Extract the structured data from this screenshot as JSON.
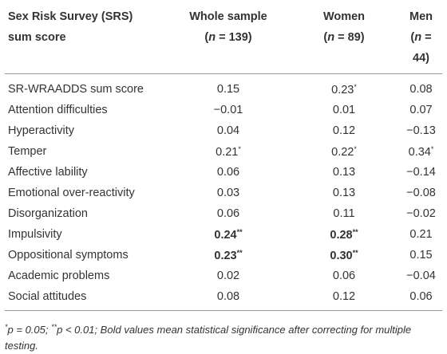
{
  "table": {
    "header": [
      [
        "Sex Risk Survey (SRS)",
        "sum score"
      ],
      [
        "Whole sample",
        "(n = 139)"
      ],
      [
        "Women",
        "(n = 89)"
      ],
      [
        "Men",
        "(n = 44)"
      ]
    ],
    "rows": [
      [
        {
          "text": "SR-WRAADDS sum score"
        },
        {
          "text": "0.15"
        },
        {
          "text": "0.23*"
        },
        {
          "text": "0.08"
        }
      ],
      [
        {
          "text": "Attention difficulties"
        },
        {
          "text": "−0.01"
        },
        {
          "text": "0.01"
        },
        {
          "text": "0.07"
        }
      ],
      [
        {
          "text": "Hyperactivity"
        },
        {
          "text": "0.04"
        },
        {
          "text": "0.12"
        },
        {
          "text": "−0.13"
        }
      ],
      [
        {
          "text": "Temper"
        },
        {
          "text": "0.21*"
        },
        {
          "text": "0.22*"
        },
        {
          "text": "0.34*"
        }
      ],
      [
        {
          "text": "Affective lability"
        },
        {
          "text": "0.06"
        },
        {
          "text": "0.13"
        },
        {
          "text": "−0.14"
        }
      ],
      [
        {
          "text": "Emotional over-reactivity"
        },
        {
          "text": "0.03"
        },
        {
          "text": "0.13"
        },
        {
          "text": "−0.08"
        }
      ],
      [
        {
          "text": "Disorganization"
        },
        {
          "text": "0.06"
        },
        {
          "text": "0.11"
        },
        {
          "text": "−0.02"
        }
      ],
      [
        {
          "text": "Impulsivity"
        },
        {
          "text": "0.24**",
          "bold": true
        },
        {
          "text": "0.28**",
          "bold": true
        },
        {
          "text": "0.21"
        }
      ],
      [
        {
          "text": "Oppositional symptoms"
        },
        {
          "text": "0.23**",
          "bold": true
        },
        {
          "text": "0.30**",
          "bold": true
        },
        {
          "text": "0.15"
        }
      ],
      [
        {
          "text": "Academic problems"
        },
        {
          "text": "0.02"
        },
        {
          "text": "0.06"
        },
        {
          "text": "−0.04"
        }
      ],
      [
        {
          "text": "Social attitudes"
        },
        {
          "text": "0.08"
        },
        {
          "text": "0.12"
        },
        {
          "text": "0.06"
        }
      ]
    ],
    "footnote": "*p = 0.05; **p < 0.01; Bold values mean statistical significance after correcting for multiple testing."
  }
}
